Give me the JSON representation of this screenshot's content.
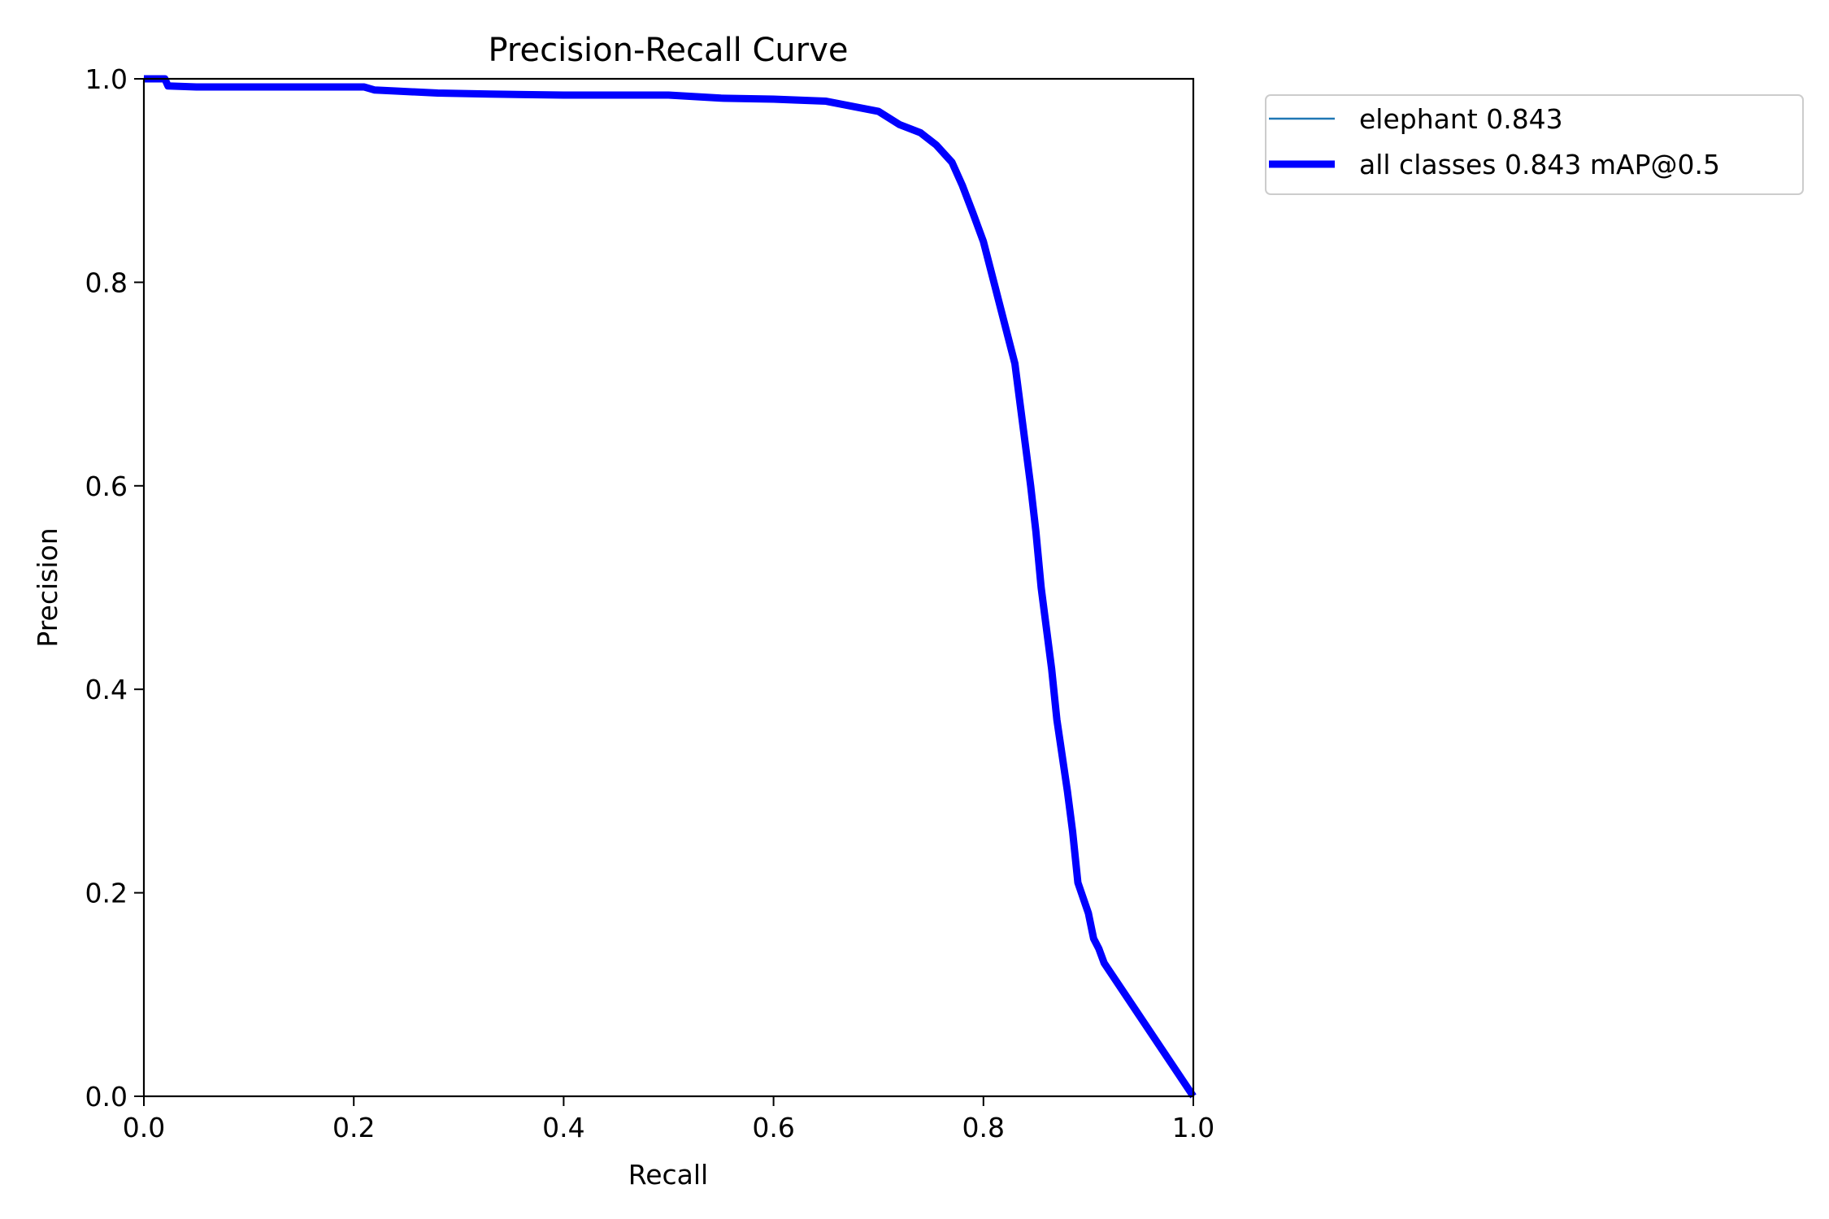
{
  "chart_data": {
    "type": "line",
    "title": "Precision-Recall Curve",
    "xlabel": "Recall",
    "ylabel": "Precision",
    "xlim": [
      0.0,
      1.0
    ],
    "ylim": [
      0.0,
      1.0
    ],
    "grid": false,
    "legend_position": "outside upper right",
    "x_ticks": [
      "0.0",
      "0.2",
      "0.4",
      "0.6",
      "0.8",
      "1.0"
    ],
    "y_ticks": [
      "0.0",
      "0.2",
      "0.4",
      "0.6",
      "0.8",
      "1.0"
    ],
    "series": [
      {
        "name": "elephant 0.843",
        "color": "#1f77b4",
        "linewidth": "thin",
        "x": [
          0.0,
          0.02,
          0.023,
          0.05,
          0.1,
          0.15,
          0.21,
          0.22,
          0.24,
          0.28,
          0.33,
          0.4,
          0.5,
          0.55,
          0.6,
          0.65,
          0.67,
          0.7,
          0.72,
          0.74,
          0.755,
          0.77,
          0.78,
          0.79,
          0.8,
          0.81,
          0.82,
          0.83,
          0.835,
          0.84,
          0.845,
          0.85,
          0.855,
          0.86,
          0.865,
          0.87,
          0.88,
          0.885,
          0.89,
          0.9,
          0.905,
          0.91,
          0.915,
          1.0
        ],
        "y": [
          1.0,
          1.0,
          0.993,
          0.992,
          0.992,
          0.992,
          0.992,
          0.989,
          0.988,
          0.986,
          0.985,
          0.984,
          0.984,
          0.981,
          0.98,
          0.978,
          0.974,
          0.968,
          0.955,
          0.947,
          0.935,
          0.918,
          0.895,
          0.868,
          0.84,
          0.8,
          0.76,
          0.72,
          0.68,
          0.64,
          0.6,
          0.555,
          0.5,
          0.46,
          0.42,
          0.37,
          0.3,
          0.26,
          0.21,
          0.18,
          0.155,
          0.145,
          0.131,
          0.0
        ]
      },
      {
        "name": "all classes 0.843 mAP@0.5",
        "color": "#0000ff",
        "linewidth": "thick",
        "x": [
          0.0,
          0.02,
          0.023,
          0.05,
          0.1,
          0.15,
          0.21,
          0.22,
          0.24,
          0.28,
          0.33,
          0.4,
          0.5,
          0.55,
          0.6,
          0.65,
          0.67,
          0.7,
          0.72,
          0.74,
          0.755,
          0.77,
          0.78,
          0.79,
          0.8,
          0.81,
          0.82,
          0.83,
          0.835,
          0.84,
          0.845,
          0.85,
          0.855,
          0.86,
          0.865,
          0.87,
          0.88,
          0.885,
          0.89,
          0.9,
          0.905,
          0.91,
          0.915,
          1.0
        ],
        "y": [
          1.0,
          1.0,
          0.993,
          0.992,
          0.992,
          0.992,
          0.992,
          0.989,
          0.988,
          0.986,
          0.985,
          0.984,
          0.984,
          0.981,
          0.98,
          0.978,
          0.974,
          0.968,
          0.955,
          0.947,
          0.935,
          0.918,
          0.895,
          0.868,
          0.84,
          0.8,
          0.76,
          0.72,
          0.68,
          0.64,
          0.6,
          0.555,
          0.5,
          0.46,
          0.42,
          0.37,
          0.3,
          0.26,
          0.21,
          0.18,
          0.155,
          0.145,
          0.131,
          0.0
        ]
      }
    ]
  },
  "legend": {
    "items": [
      {
        "label": "elephant 0.843",
        "color": "#1f77b4"
      },
      {
        "label": "all classes 0.843 mAP@0.5",
        "color": "#0000ff"
      }
    ]
  }
}
